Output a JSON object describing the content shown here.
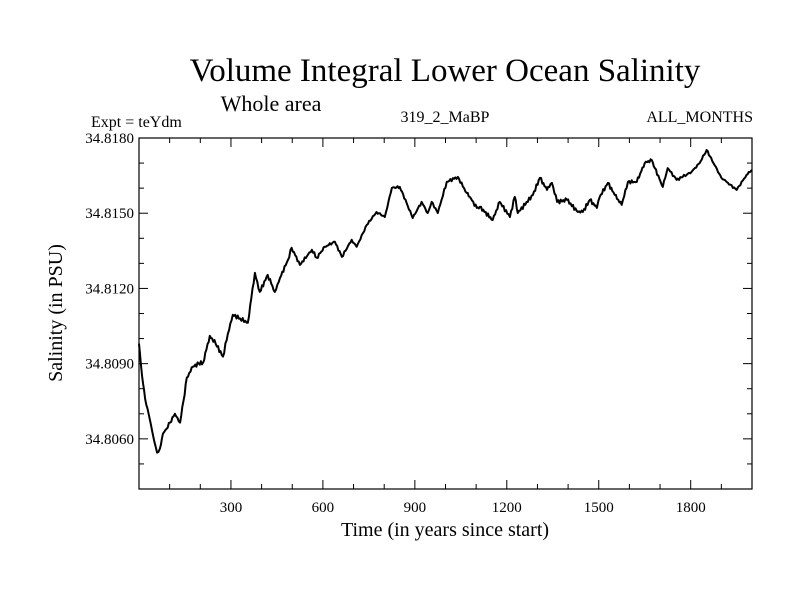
{
  "chart_data": {
    "type": "line",
    "title": "Volume Integral Lower Ocean Salinity",
    "subtitle": "Whole area",
    "annotations": {
      "left": "Expt = teYdm",
      "center": "319_2_MaBP",
      "right": "ALL_MONTHS"
    },
    "xlabel": "Time (in years since start)",
    "ylabel": "Salinity (in PSU)",
    "xlim": [
      0,
      2000
    ],
    "ylim": [
      34.804,
      34.818
    ],
    "xticks_major": [
      300,
      600,
      900,
      1200,
      1500,
      1800
    ],
    "xticks_major_labels": [
      "300",
      "600",
      "900",
      "1200",
      "1500",
      "1800"
    ],
    "xticks_minor_step": 100,
    "yticks_major": [
      34.806,
      34.809,
      34.812,
      34.815,
      34.818
    ],
    "yticks_major_labels": [
      "34.8060",
      "34.8090",
      "34.8120",
      "34.8150",
      "34.8180"
    ],
    "yticks_minor_step": 0.001,
    "grid": false,
    "legend": "none",
    "series": [
      {
        "name": "Salinity",
        "color": "#000000",
        "x": [
          0,
          10,
          20,
          35,
          50,
          59,
          68,
          78,
          90,
          101,
          117,
          134,
          145,
          156,
          176,
          195,
          209,
          231,
          250,
          274,
          290,
          306,
          330,
          355,
          378,
          394,
          420,
          443,
          460,
          486,
          498,
          525,
          564,
          580,
          606,
          639,
          662,
          694,
          710,
          743,
          775,
          802,
          825,
          851,
          873,
          893,
          922,
          942,
          955,
          975,
          1004,
          1040,
          1069,
          1079,
          1102,
          1112,
          1154,
          1177,
          1210,
          1226,
          1236,
          1285,
          1308,
          1331,
          1347,
          1364,
          1396,
          1432,
          1448,
          1471,
          1494,
          1503,
          1530,
          1552,
          1575,
          1595,
          1624,
          1650,
          1673,
          1683,
          1709,
          1725,
          1754,
          1774,
          1803,
          1829,
          1852,
          1878,
          1900,
          1917,
          1950,
          1982,
          2000
        ],
        "y": [
          34.8098,
          34.8085,
          34.8076,
          34.8068,
          34.8059,
          34.80545,
          34.8056,
          34.8062,
          34.8064,
          34.80665,
          34.807,
          34.80665,
          34.8075,
          34.80844,
          34.80888,
          34.809,
          34.80904,
          34.81011,
          34.8098,
          34.80928,
          34.8102,
          34.81095,
          34.8108,
          34.81063,
          34.81262,
          34.81186,
          34.81254,
          34.81186,
          34.81242,
          34.81314,
          34.81362,
          34.81294,
          34.81354,
          34.81322,
          34.81366,
          34.81386,
          34.81326,
          34.81394,
          34.81366,
          34.81453,
          34.81505,
          34.81485,
          34.81601,
          34.81605,
          34.81541,
          34.81481,
          34.81545,
          34.81501,
          34.81545,
          34.81501,
          34.81625,
          34.81645,
          34.81581,
          34.81565,
          34.81521,
          34.81525,
          34.81473,
          34.81545,
          34.81485,
          34.81565,
          34.81501,
          34.81573,
          34.81641,
          34.81593,
          34.81621,
          34.81545,
          34.81553,
          34.81505,
          34.81505,
          34.81553,
          34.81521,
          34.81565,
          34.81621,
          34.81573,
          34.81533,
          34.81625,
          34.81625,
          34.817,
          34.81712,
          34.8168,
          34.81605,
          34.8168,
          34.81633,
          34.81645,
          34.81665,
          34.817,
          34.81752,
          34.81692,
          34.81641,
          34.81625,
          34.81593,
          34.81653,
          34.81673
        ]
      }
    ]
  }
}
